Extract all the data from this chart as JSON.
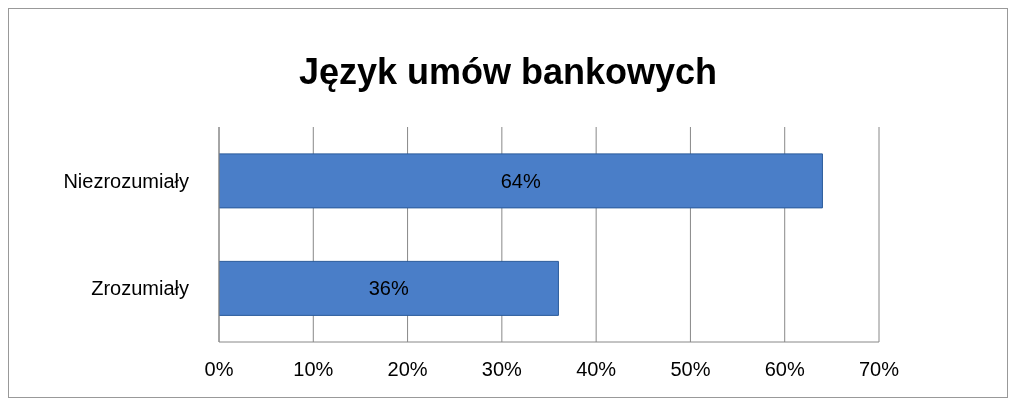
{
  "chart_data": {
    "type": "bar",
    "orientation": "horizontal",
    "title": "Język umów bankowych",
    "categories": [
      "Niezrozumiały",
      "Zrozumiały"
    ],
    "values": [
      64,
      36
    ],
    "value_labels": [
      "64%",
      "36%"
    ],
    "color": "#4a7ec8",
    "xlim": [
      0,
      70
    ],
    "xticks": [
      {
        "value": 0,
        "label": "0%"
      },
      {
        "value": 10,
        "label": "10%"
      },
      {
        "value": 20,
        "label": "20%"
      },
      {
        "value": 30,
        "label": "30%"
      },
      {
        "value": 40,
        "label": "40%"
      },
      {
        "value": 50,
        "label": "50%"
      },
      {
        "value": 60,
        "label": "60%"
      },
      {
        "value": 70,
        "label": "70%"
      }
    ],
    "grid": "x",
    "legend": false
  }
}
